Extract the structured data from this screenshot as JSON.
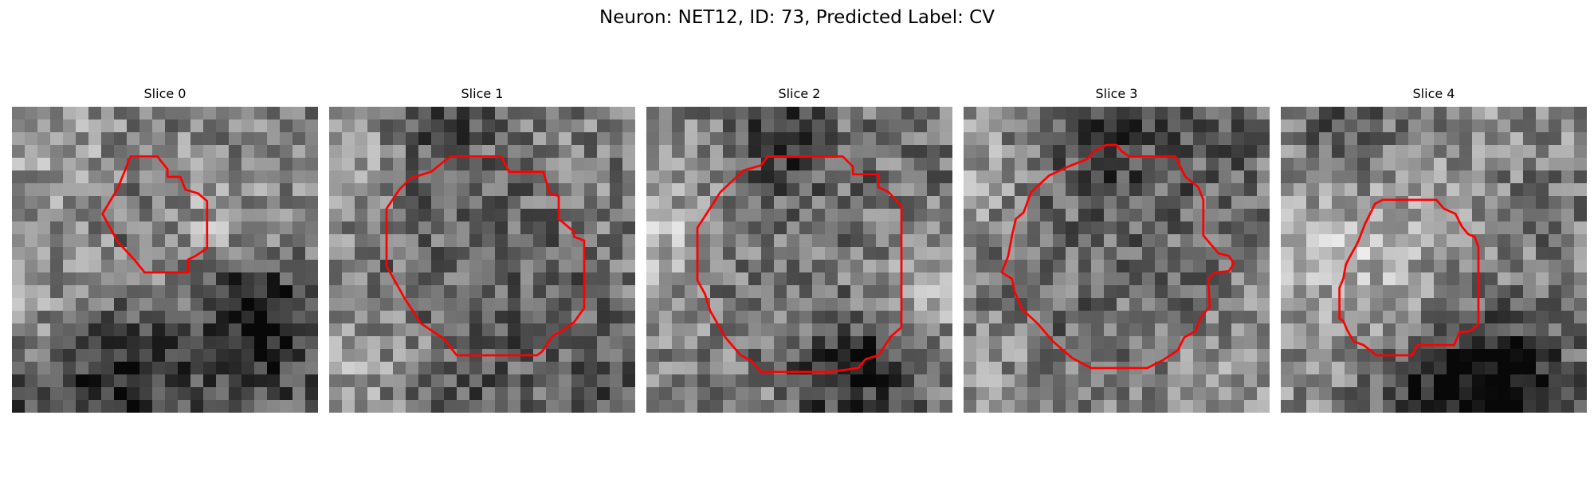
{
  "figure": {
    "title": "Neuron: NET12, ID: 73, Predicted Label: CV"
  },
  "panels": [
    {
      "title": "Slice 0"
    },
    {
      "title": "Slice 1"
    },
    {
      "title": "Slice 2"
    },
    {
      "title": "Slice 3"
    },
    {
      "title": "Slice 4"
    }
  ],
  "colors": {
    "contour": "#ff0000",
    "colormap": "grayscale"
  }
}
